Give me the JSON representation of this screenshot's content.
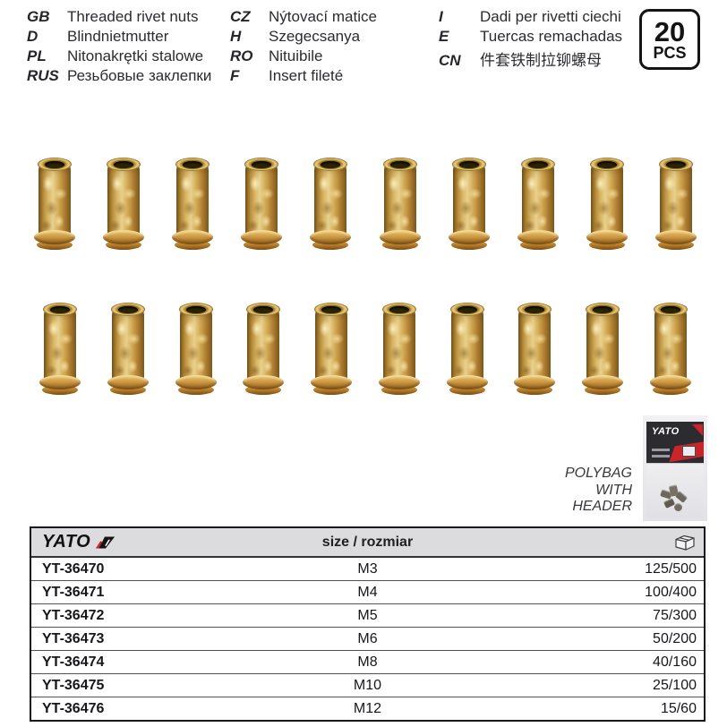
{
  "languages": [
    {
      "code": "GB",
      "text": "Threaded rivet nuts"
    },
    {
      "code": "D",
      "text": "Blindnietmutter"
    },
    {
      "code": "PL",
      "text": "Nitonakrętki stalowe"
    },
    {
      "code": "RUS",
      "text": "Резьбовые заклепки"
    },
    {
      "code": "CZ",
      "text": "Nýtovací matice"
    },
    {
      "code": "H",
      "text": "Szegecsanya"
    },
    {
      "code": "RO",
      "text": "Nituibile"
    },
    {
      "code": "F",
      "text": "Insert fileté"
    },
    {
      "code": "I",
      "text": "Dadi per rivetti ciechi"
    },
    {
      "code": "E",
      "text": "Tuercas remachadas"
    },
    {
      "code": "CN",
      "text": "件套铁制拉铆螺母"
    }
  ],
  "badge": {
    "count": "20",
    "unit": "PCS"
  },
  "products": {
    "rows": [
      {
        "count": 10
      },
      {
        "count": 10
      }
    ]
  },
  "packaging": {
    "photo_brand": "YATO",
    "label_lines": [
      "POLYBAG",
      "WITH",
      "HEADER"
    ]
  },
  "table": {
    "brand": "YATO",
    "size_header": "size / rozmiar",
    "rows": [
      {
        "code": "YT-36470",
        "size": "M3",
        "qty": "125/500"
      },
      {
        "code": "YT-36471",
        "size": "M4",
        "qty": "100/400"
      },
      {
        "code": "YT-36472",
        "size": "M5",
        "qty": "75/300"
      },
      {
        "code": "YT-36473",
        "size": "M6",
        "qty": "50/200"
      },
      {
        "code": "YT-36474",
        "size": "M8",
        "qty": "40/160"
      },
      {
        "code": "YT-36475",
        "size": "M10",
        "qty": "25/100"
      },
      {
        "code": "YT-36476",
        "size": "M12",
        "qty": "15/60"
      }
    ]
  },
  "colors": {
    "accent_red": "#c9252b",
    "header_bg": "#dcdcdf",
    "text": "#17171b"
  }
}
